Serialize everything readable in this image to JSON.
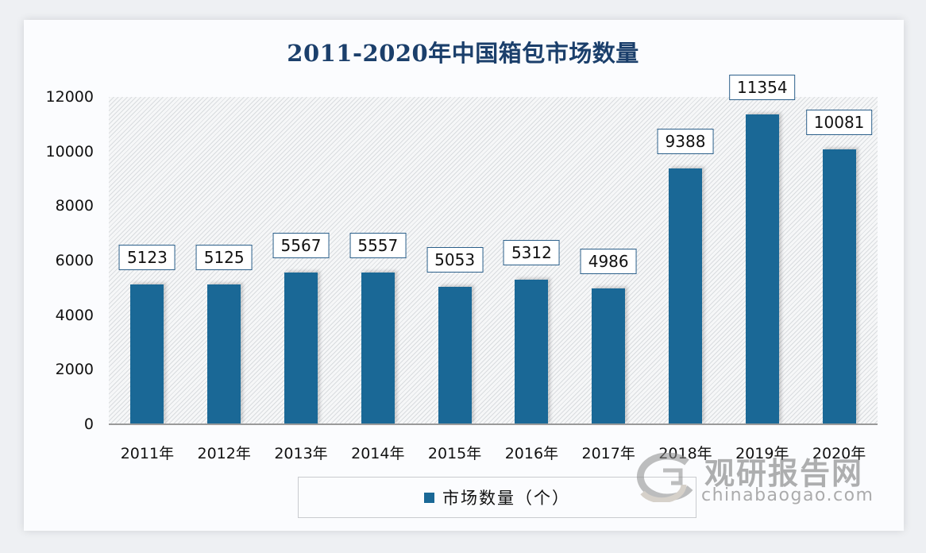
{
  "chart_data": {
    "type": "bar",
    "title": "2011-2020年中国箱包市场数量",
    "categories": [
      "2011年",
      "2012年",
      "2013年",
      "2014年",
      "2015年",
      "2016年",
      "2017年",
      "2018年",
      "2019年",
      "2020年"
    ],
    "series": [
      {
        "name": "市场数量（个）",
        "color": "#1a6896",
        "values": [
          5123,
          5125,
          5567,
          5557,
          5053,
          5312,
          4986,
          9388,
          11354,
          10081
        ]
      }
    ],
    "xlabel": "",
    "ylabel": "",
    "ylim": [
      0,
      12000
    ],
    "yticks": [
      "12000",
      "10000",
      "8000",
      "6000",
      "4000",
      "2000",
      "0"
    ],
    "data_labels": [
      "5123",
      "5125",
      "5567",
      "5557",
      "5053",
      "5312",
      "4986",
      "9388",
      "11354",
      "10081"
    ],
    "legend_position": "bottom",
    "grid": false
  },
  "watermark": {
    "cn": "观研报告网",
    "en": "chinabaogao.com"
  },
  "colors": {
    "bar": "#1a6896",
    "title": "#1b3f6b",
    "label_border": "#2b5f8a"
  }
}
